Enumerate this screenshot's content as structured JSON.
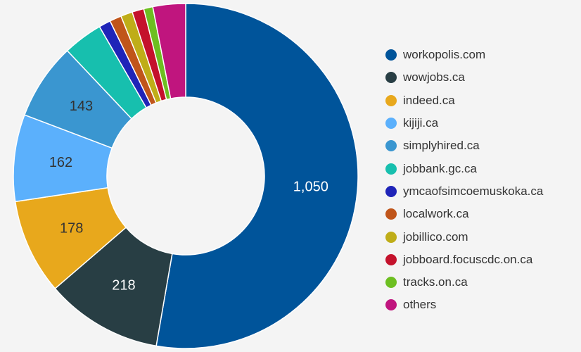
{
  "chart_data": {
    "type": "pie",
    "donut": true,
    "legend_position": "right",
    "series": [
      {
        "name": "workopolis.com",
        "value": 1050,
        "label": "1,050",
        "color": "#00549a"
      },
      {
        "name": "wowjobs.ca",
        "value": 218,
        "label": "218",
        "color": "#283e44"
      },
      {
        "name": "indeed.ca",
        "value": 178,
        "label": "178",
        "color": "#e8a81c"
      },
      {
        "name": "kijiji.ca",
        "value": 162,
        "label": "162",
        "color": "#5bb0fc"
      },
      {
        "name": "simplyhired.ca",
        "value": 143,
        "label": "143",
        "color": "#3a96d0"
      },
      {
        "name": "jobbank.gc.ca",
        "value": 74,
        "label": "",
        "color": "#17bfae"
      },
      {
        "name": "ymcaofsimcoemuskoka.ca",
        "value": 22,
        "label": "",
        "color": "#1f24b8"
      },
      {
        "name": "localwork.ca",
        "value": 22,
        "label": "",
        "color": "#c0551a"
      },
      {
        "name": "jobillico.com",
        "value": 22,
        "label": "",
        "color": "#bfad18"
      },
      {
        "name": "jobboard.focuscdc.on.ca",
        "value": 22,
        "label": "",
        "color": "#c4122c"
      },
      {
        "name": "tracks.on.ca",
        "value": 17,
        "label": "",
        "color": "#6dbf21"
      },
      {
        "name": "others",
        "value": 61,
        "label": "",
        "color": "#c0157e"
      }
    ]
  }
}
